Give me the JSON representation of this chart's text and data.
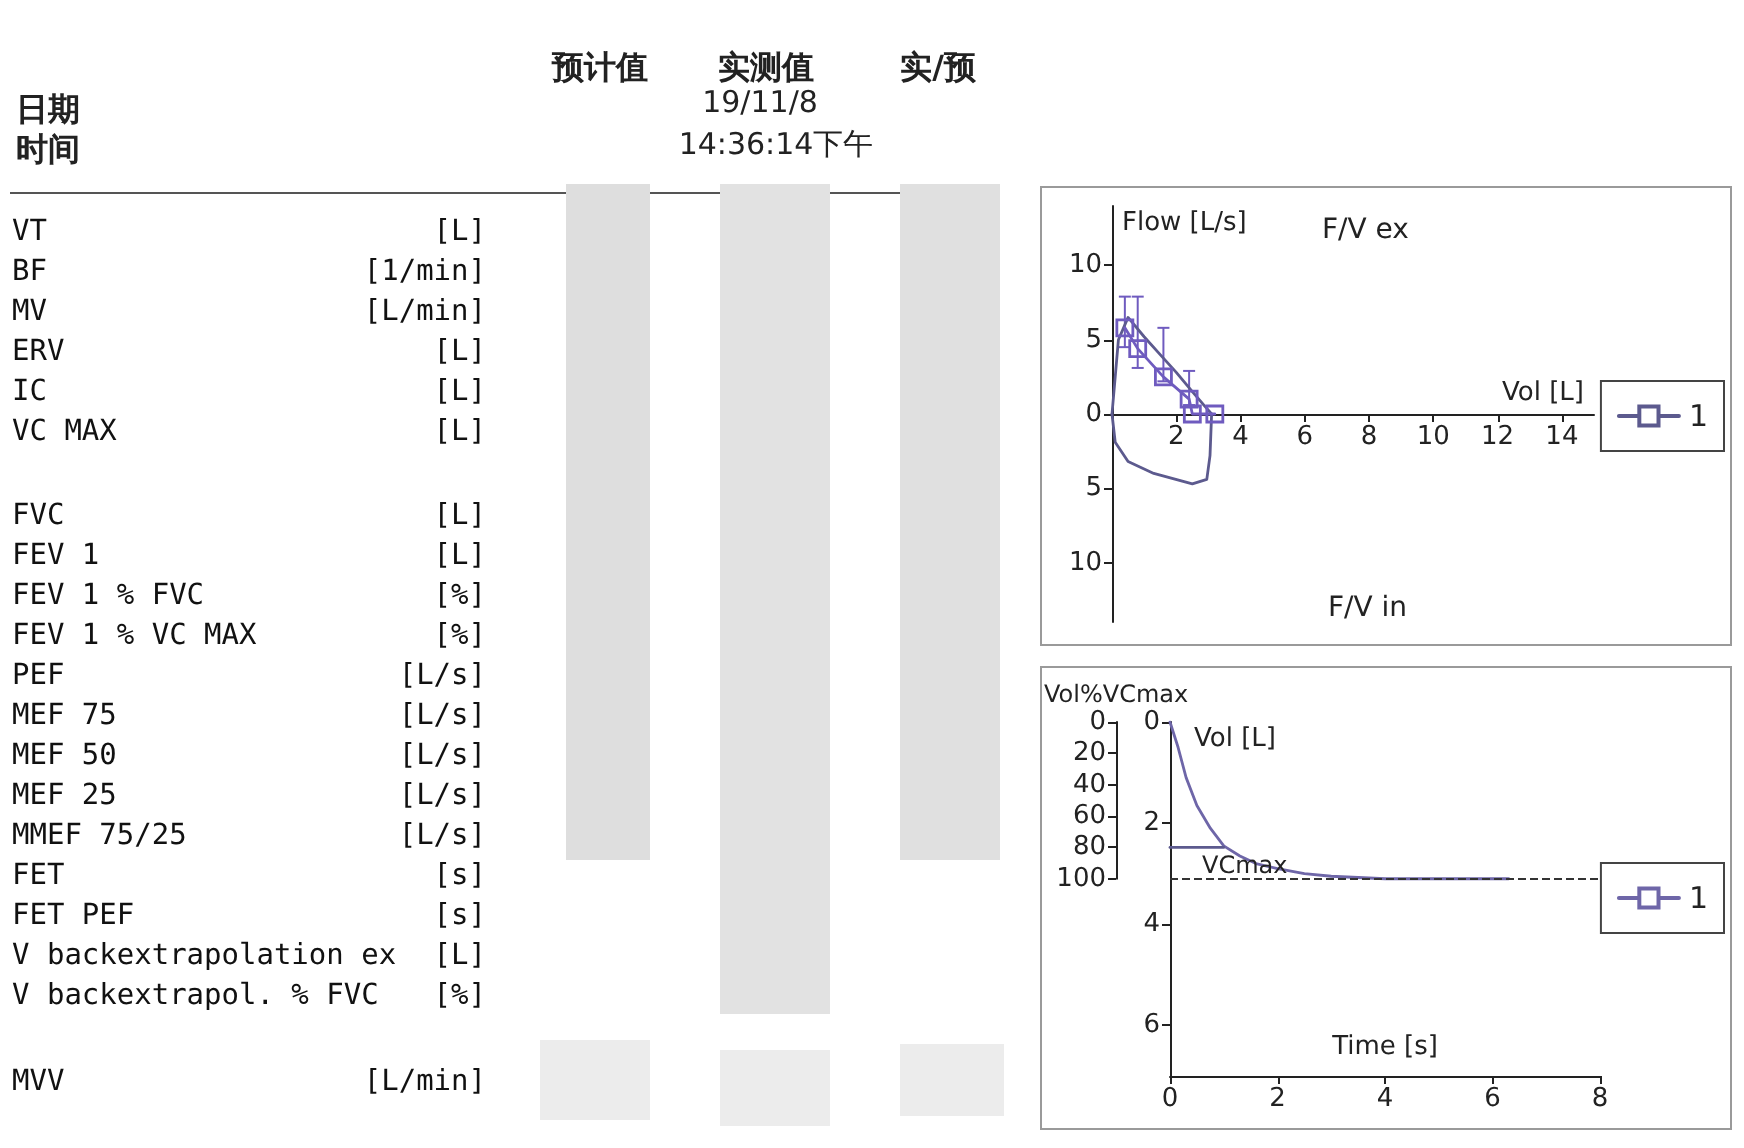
{
  "chart_data": [
    {
      "type": "other",
      "annotations": [
        "预计值",
        "实测值",
        "实/预",
        "日期",
        "19/11/8",
        "时间",
        "14:36:14下午",
        "VT",
        "[L]",
        "BF",
        "[1/min]",
        "MV",
        "[L/min]",
        "ERV",
        "[L]",
        "IC",
        "[L]",
        "VC MAX",
        "[L]",
        "FVC",
        "[L]",
        "FEV 1",
        "[L]",
        "FEV 1 % FVC",
        "[%]",
        "FEV 1 % VC MAX",
        "[%]",
        "PEF",
        "[L/s]",
        "MEF 75",
        "[L/s]",
        "MEF 50",
        "[L/s]",
        "MEF 25",
        "[L/s]",
        "MMEF 75/25",
        "[L/s]",
        "FET",
        "[s]",
        "FET PEF",
        "[s]",
        "V backextrapolation ex",
        "[L]",
        "V backextrapol. % FVC",
        "[%]",
        "MVV",
        "[L/min]"
      ]
    },
    {
      "type": "line",
      "xlabel": "Vol [L]",
      "ylabel": "Flow [L/s]",
      "annotations": [
        "F/V ex",
        "F/V in"
      ],
      "xlim": [
        0,
        15
      ],
      "xticks": [
        2,
        4,
        6,
        8,
        10,
        12,
        14
      ],
      "ylim": [
        -14,
        14
      ],
      "yticks": [
        {
          "value": -10,
          "label": "10"
        },
        {
          "value": -5,
          "label": "5"
        },
        0,
        5,
        10
      ],
      "legend": "right",
      "series": [
        {
          "name": "1",
          "color": "#5c5a8e",
          "marker": "none",
          "x": [
            0,
            0.1,
            0.2,
            0.5,
            1.0,
            1.5,
            2.0,
            2.5,
            2.9,
            3.1
          ],
          "values": [
            0,
            2.5,
            5.0,
            6.5,
            5.2,
            4.0,
            2.8,
            1.5,
            0.5,
            0
          ]
        },
        {
          "color": "#5c5a8e",
          "marker": "none",
          "x": [
            0,
            0.1,
            0.5,
            1.3,
            2.5,
            2.95,
            3.05,
            3.1
          ],
          "values": [
            0,
            -1.9,
            -3.2,
            -4.0,
            -4.7,
            -4.4,
            -2.8,
            0
          ]
        },
        {
          "color": "#6f5bbf",
          "marker": "square",
          "x": [
            0.4,
            0.8,
            1.6,
            2.4,
            2.5,
            3.2
          ],
          "values": [
            5.8,
            4.4,
            2.5,
            1.0,
            0,
            0
          ],
          "errors": [
            [
              4.5,
              7.9
            ],
            [
              3.1,
              7.9
            ],
            [
              2.2,
              5.8
            ],
            [
              0.6,
              2.9
            ],
            null,
            null
          ]
        }
      ]
    },
    {
      "type": "line",
      "xlabel": "Time [s]",
      "ylabel": "Vol [L]",
      "y2label": "Vol%VCmax",
      "xlim": [
        0,
        8
      ],
      "xticks": [
        0,
        2,
        4,
        6,
        8
      ],
      "ylim": [
        7,
        0
      ],
      "yticks": [
        0,
        2,
        4,
        6
      ],
      "y2lim": [
        100,
        0
      ],
      "y2ticks": [
        0,
        20,
        40,
        60,
        80,
        100
      ],
      "legend": "right",
      "ref_lines": [
        {
          "axis": "y",
          "value": 3.1,
          "label": "VCmax",
          "line_style": "dashed",
          "color": "#333333"
        }
      ],
      "series": [
        {
          "name": "1",
          "color": "#6e66a8",
          "marker": "none",
          "x": [
            0,
            0.15,
            0.3,
            0.5,
            0.75,
            1.0,
            1.3,
            1.6,
            2.0,
            2.5,
            3.0,
            4.0,
            5.0,
            6.3
          ],
          "values": [
            0,
            0.5,
            1.1,
            1.65,
            2.1,
            2.45,
            2.65,
            2.8,
            2.9,
            3.0,
            3.05,
            3.1,
            3.1,
            3.1
          ]
        },
        {
          "color": "#5c5a8e",
          "axis": "y2",
          "marker": "none",
          "x": [
            0,
            1.0
          ],
          "values": [
            80,
            80
          ]
        }
      ]
    }
  ]
}
